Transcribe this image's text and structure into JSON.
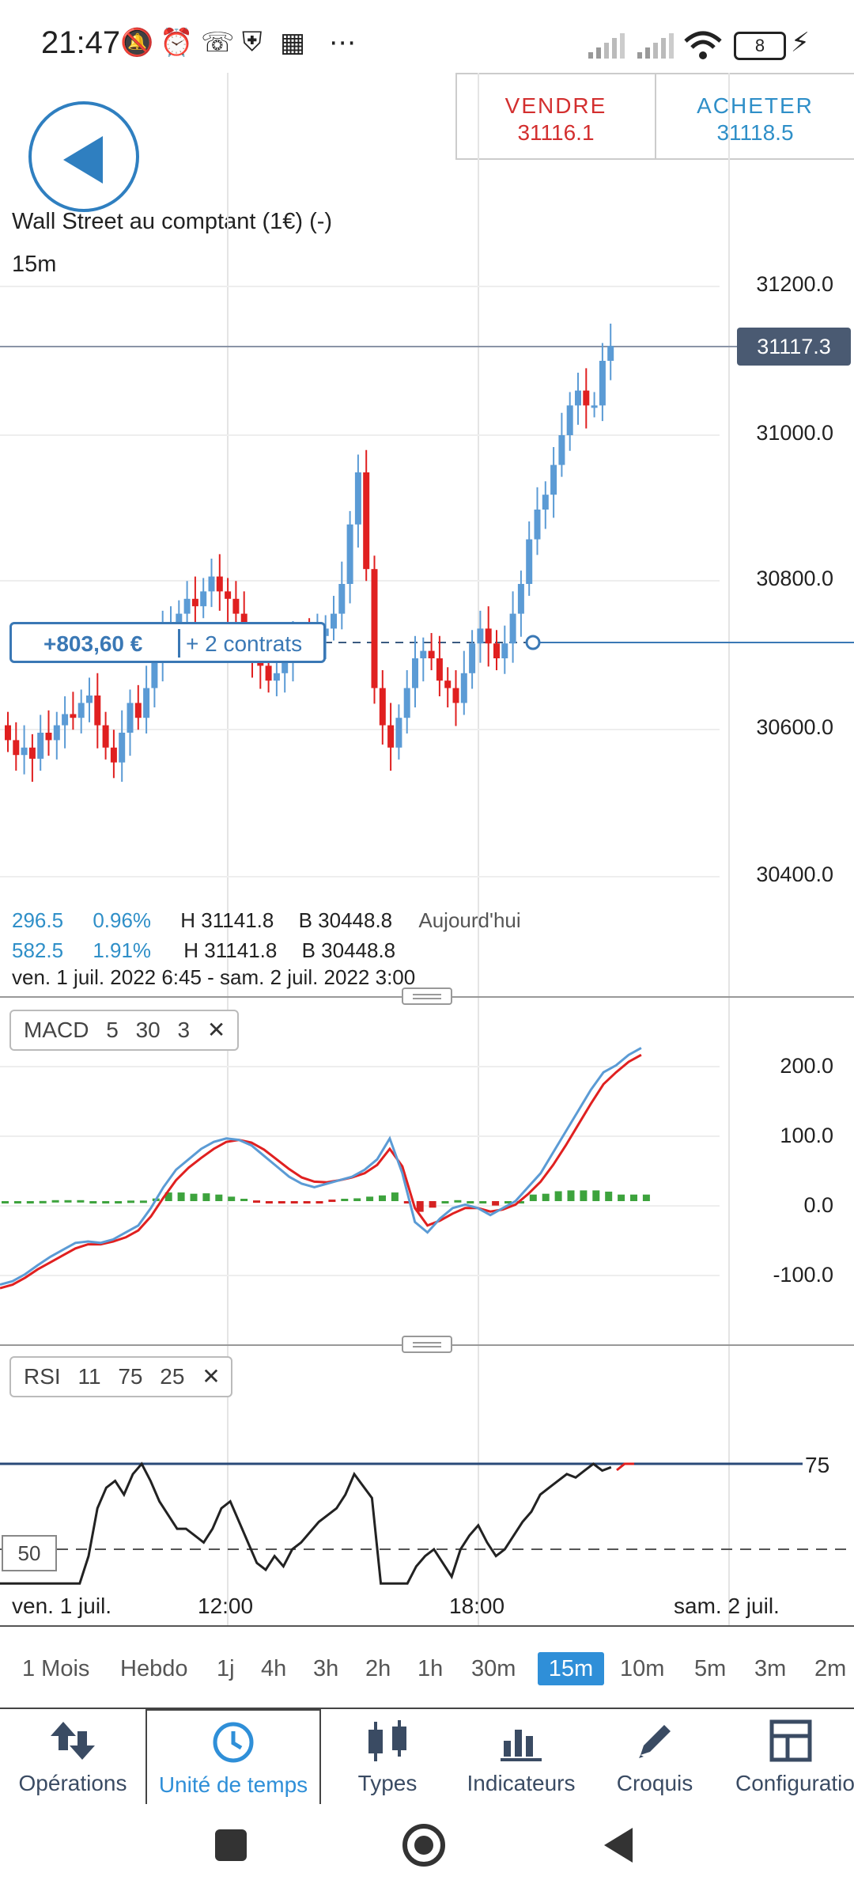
{
  "status_bar": {
    "time": "21:47",
    "icons": [
      "bell-muted-icon",
      "alarm-icon",
      "call-forward-icon",
      "shield-icon",
      "grid-icon",
      "more-icon",
      "signal-icon",
      "signal-icon",
      "wifi-icon",
      "battery-icon",
      "charging-icon"
    ],
    "battery": "8"
  },
  "header": {
    "sell_label": "VENDRE",
    "sell_price": "31116.1",
    "buy_label": "ACHETER",
    "buy_price": "31118.5",
    "instrument": "Wall Street au comptant (1€) (-)",
    "timeframe": "15m"
  },
  "price_chart": {
    "y_ticks": [
      "31200.0",
      "31000.0",
      "30800.0",
      "30600.0",
      "30400.0"
    ],
    "current_price": "31117.3",
    "position_pnl": "+803,60 €",
    "position_size": "+ 2 contrats",
    "stats_row1": {
      "change": "296.5",
      "pct": "0.96%",
      "high": "H 31141.8",
      "low": "B 30448.8",
      "period": "Aujourd'hui"
    },
    "stats_row2": {
      "change": "582.5",
      "pct": "1.91%",
      "high": "H 31141.8",
      "low": "B 30448.8"
    },
    "range": "ven. 1 juil. 2022 6:45 - sam. 2 juil. 2022 3:00",
    "colors": {
      "up": "#5b9bd5",
      "down": "#e02020",
      "accent": "#2f8fd8"
    }
  },
  "macd": {
    "name": "MACD",
    "params": [
      "5",
      "30",
      "3"
    ],
    "close": "✕",
    "y_ticks": [
      "200.0",
      "100.0",
      "0.0",
      "-100.0"
    ]
  },
  "rsi": {
    "name": "RSI",
    "params": [
      "11",
      "75",
      "25"
    ],
    "close": "✕",
    "level_75": "75",
    "level_50": "50"
  },
  "x_axis": [
    "ven. 1 juil.",
    "12:00",
    "18:00",
    "sam. 2 juil."
  ],
  "timeframes": [
    "1 Mois",
    "Hebdo",
    "1j",
    "4h",
    "3h",
    "2h",
    "1h",
    "30m",
    "15m",
    "10m",
    "5m",
    "3m",
    "2m"
  ],
  "active_timeframe": "15m",
  "bottom_tabs": [
    "Opérations",
    "Unité de temps",
    "Types",
    "Indicateurs",
    "Croquis",
    "Configuratio"
  ],
  "active_tab": "Unité de temps"
}
